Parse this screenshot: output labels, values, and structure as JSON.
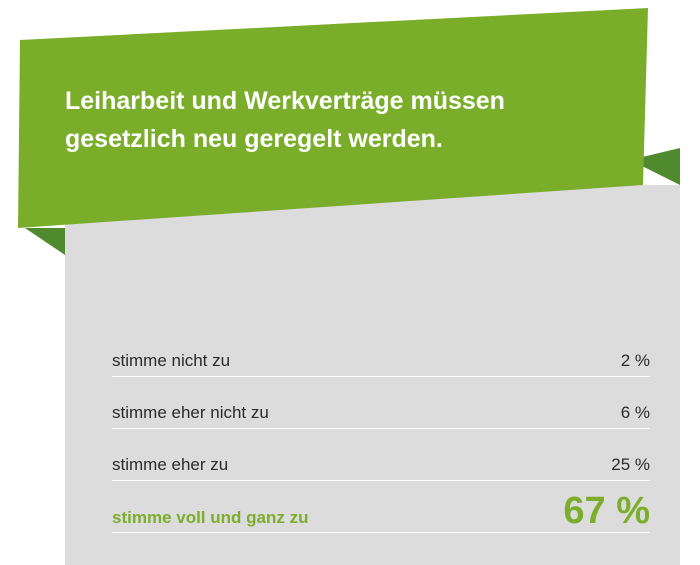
{
  "title_lines": [
    "Leiharbeit und Werkverträge müssen",
    "gesetzlich neu geregelt werden."
  ],
  "colors": {
    "banner": "#79ad2a",
    "banner_fold": "#4f8a2e",
    "panel": "#dcdcdc",
    "highlight_text": "#7aae2b",
    "text": "#2b2b2b"
  },
  "chart_data": {
    "type": "table",
    "title": "Leiharbeit und Werkverträge müssen gesetzlich neu geregelt werden.",
    "unit": "%",
    "categories": [
      "stimme nicht zu",
      "stimme eher nicht zu",
      "stimme eher zu",
      "stimme voll und ganz zu"
    ],
    "values": [
      2,
      6,
      25,
      67
    ],
    "value_labels": [
      "2 %",
      "6 %",
      "25 %",
      "67 %"
    ],
    "highlighted_index": 3
  }
}
